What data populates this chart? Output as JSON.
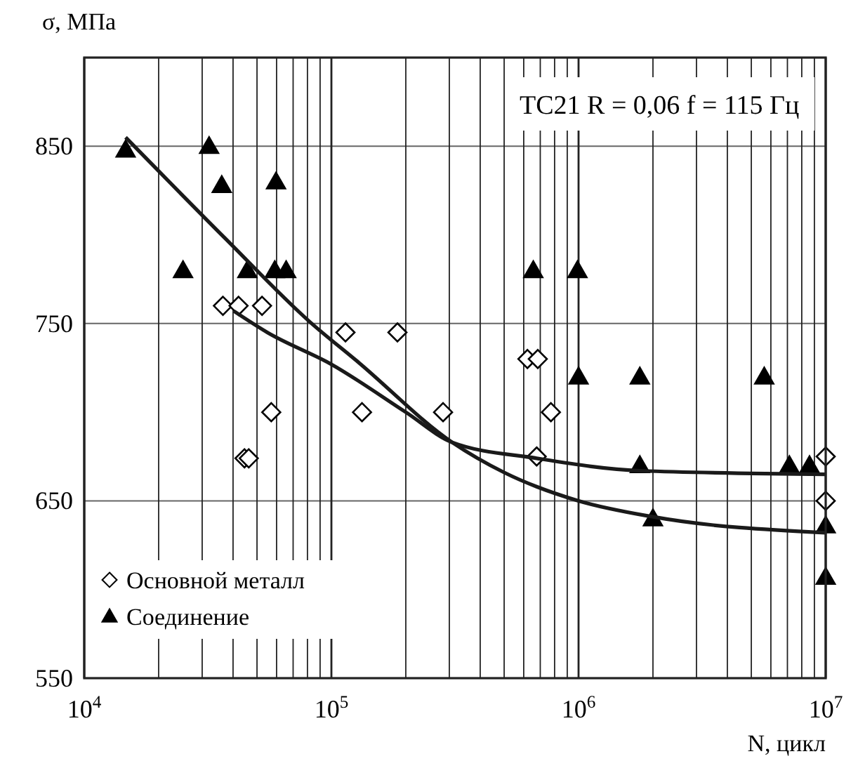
{
  "chart_data": {
    "type": "scatter",
    "ylabel": "σ, МПа",
    "xlabel": "N, цикл",
    "log": "x",
    "grid": true,
    "legend": "bottom left",
    "annotations": [
      "TC21 R = 0,06 f = 115 Гц"
    ],
    "xlim": [
      10000,
      10000000
    ],
    "ylim": [
      550,
      900
    ],
    "xticks": [
      {
        "value": 10000,
        "label": "10$^{4}$"
      },
      {
        "value": 20000,
        "label": null
      },
      {
        "value": 30000,
        "label": null
      },
      {
        "value": 40000,
        "label": null
      },
      {
        "value": 50000,
        "label": null
      },
      {
        "value": 60000,
        "label": null
      },
      {
        "value": 70000,
        "label": null
      },
      {
        "value": 80000,
        "label": null
      },
      {
        "value": 90000,
        "label": null
      },
      {
        "value": 100000,
        "label": "10$^{5}$"
      },
      {
        "value": 200000,
        "label": null
      },
      {
        "value": 300000,
        "label": null
      },
      {
        "value": 400000,
        "label": null
      },
      {
        "value": 500000,
        "label": null
      },
      {
        "value": 600000,
        "label": null
      },
      {
        "value": 700000,
        "label": null
      },
      {
        "value": 800000,
        "label": null
      },
      {
        "value": 900000,
        "label": null
      },
      {
        "value": 1000000,
        "label": "10$^{6}$"
      },
      {
        "value": 2000000,
        "label": null
      },
      {
        "value": 3000000,
        "label": null
      },
      {
        "value": 4000000,
        "label": null
      },
      {
        "value": 5000000,
        "label": null
      },
      {
        "value": 6000000,
        "label": null
      },
      {
        "value": 7000000,
        "label": null
      },
      {
        "value": 8000000,
        "label": null
      },
      {
        "value": 9000000,
        "label": null
      },
      {
        "value": 10000000,
        "label": "10$^{7}$"
      }
    ],
    "yticks": [
      550,
      650,
      750,
      850
    ],
    "series": [
      {
        "name": "Основной металл",
        "marker": "diamond",
        "color": "#000000",
        "x": [
          36400,
          42100,
          52400,
          114000,
          185000,
          57100,
          133000,
          283000,
          44500,
          46300,
          621000,
          684000,
          773000,
          677000,
          10000000,
          10000000
        ],
        "values": [
          760,
          760,
          760,
          745,
          745,
          700,
          700,
          700,
          674,
          674,
          730,
          730,
          700,
          675,
          675,
          650
        ]
      },
      {
        "name": "Соединение",
        "marker": "triangle",
        "color": "#000000",
        "x": [
          14700,
          32000,
          36000,
          59700,
          25100,
          45700,
          59000,
          65600,
          656000,
          990000,
          1000000,
          1770000,
          5640000,
          1770000,
          7130000,
          8600000,
          2000000,
          10000000,
          10000000
        ],
        "values": [
          848,
          850,
          828,
          830,
          780,
          780,
          780,
          780,
          780,
          780,
          720,
          720,
          720,
          670,
          670,
          670,
          640,
          636,
          607
        ]
      },
      {
        "type": "line",
        "marker": "none",
        "color": "#1a1a1a",
        "x": [
          14700,
          37200,
          81700,
          129000,
          308000,
          500000,
          1000000,
          2000000,
          10000000
        ],
        "values": [
          855,
          798,
          751,
          728,
          683,
          666,
          650,
          641,
          632
        ]
      },
      {
        "type": "line",
        "marker": "none",
        "color": "#1a1a1a",
        "x": [
          40300,
          55000,
          100000,
          200000,
          308000,
          677000,
          1770000,
          10000000
        ],
        "values": [
          757,
          745,
          727,
          700,
          683,
          674,
          667,
          665
        ]
      }
    ]
  }
}
